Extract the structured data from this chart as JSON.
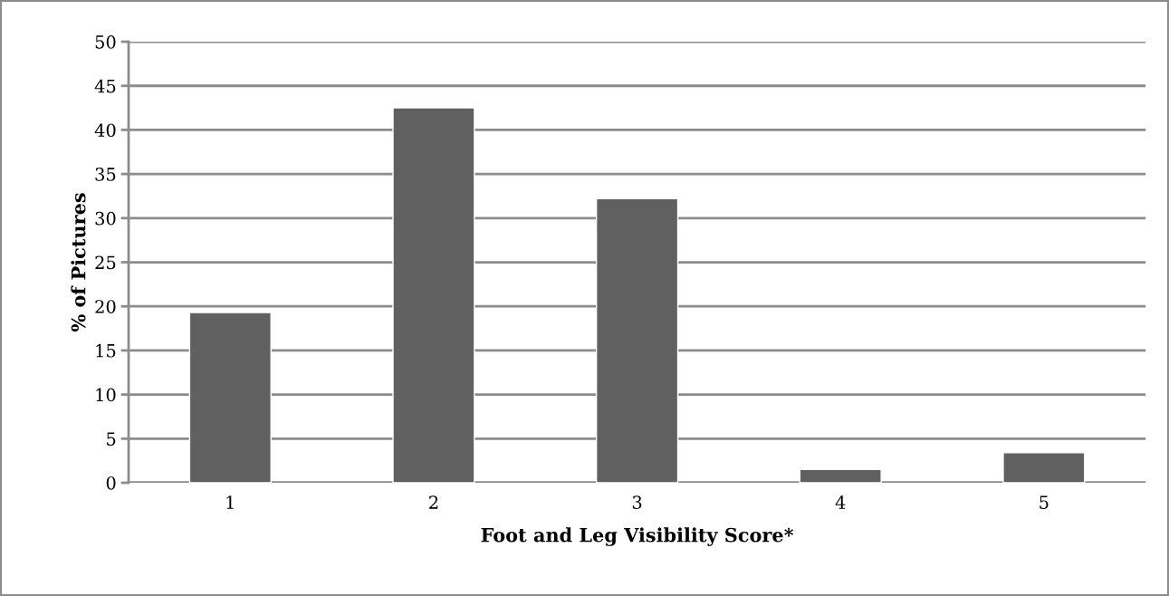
{
  "chart_data": {
    "type": "bar",
    "xlabel": "Foot and Leg Visibility Score*",
    "ylabel": "% of Pictures",
    "categories": [
      "1",
      "2",
      "3",
      "4",
      "5"
    ],
    "values": [
      19.3,
      42.5,
      32.2,
      1.5,
      3.4
    ],
    "color": "#606060",
    "ylim": [
      0,
      50
    ],
    "yticks": [
      0,
      5,
      10,
      15,
      20,
      25,
      30,
      35,
      40,
      45,
      50
    ],
    "grid": "y"
  }
}
